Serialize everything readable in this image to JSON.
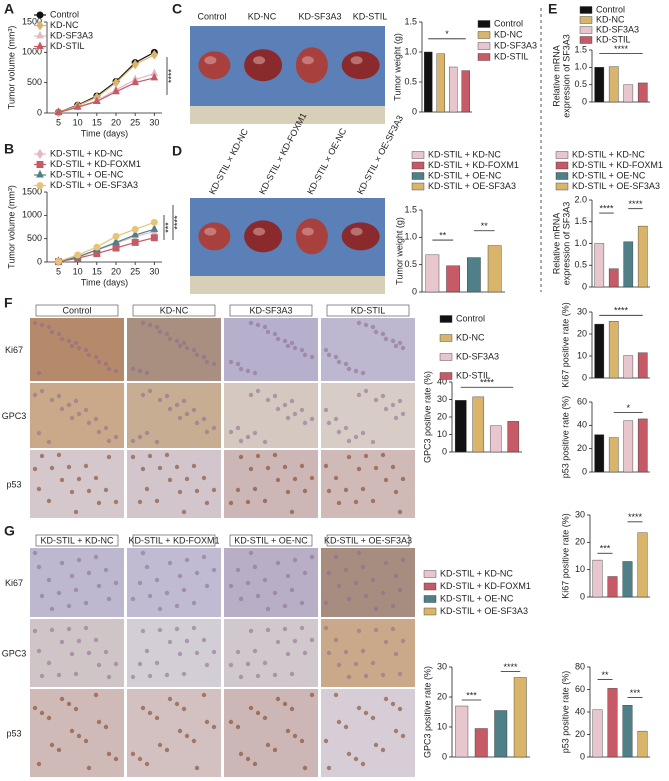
{
  "panel_labels": [
    "A",
    "B",
    "C",
    "D",
    "E",
    "F",
    "G"
  ],
  "tumor_photo_c": {
    "labels": [
      "Control",
      "KD-NC",
      "KD-SF3A3",
      "KD-STIL"
    ]
  },
  "tumor_photo_d": {
    "labels": [
      "KD-STIL × KD-NC",
      "KD-STIL × KD-FOXM1",
      "KD-STIL × OE-NC",
      "KD-STIL × OE-SF3A3"
    ]
  },
  "ihc_f": {
    "columns": [
      "Control",
      "KD-NC",
      "KD-SF3A3",
      "KD-STIL"
    ],
    "rows": [
      "Ki67",
      "GPC3",
      "p53"
    ]
  },
  "ihc_g": {
    "columns": [
      "KD-STIL + KD-NC",
      "KD-STIL + KD-FOXM1",
      "KD-STIL + OE-NC",
      "KD-STIL + OE-SF3A3"
    ],
    "rows": [
      "Ki67",
      "GPC3",
      "p53"
    ]
  },
  "chart_data": [
    {
      "type": "line",
      "xlabel": "Time (days)",
      "ylabel": "Tumor volume (mm³)",
      "x": [
        5,
        10,
        15,
        20,
        25,
        30
      ],
      "xlim": [
        2,
        32
      ],
      "xticks": [
        5,
        10,
        15,
        20,
        25,
        30
      ],
      "ylim": [
        0,
        1500
      ],
      "yticks": [
        0,
        500,
        1000,
        1500
      ],
      "series": [
        {
          "name": "Control",
          "color": "#111111",
          "marker": "circle",
          "values": [
            10,
            130,
            280,
            520,
            830,
            1000
          ]
        },
        {
          "name": "KD-NC",
          "color": "#d9b56b",
          "marker": "diamond",
          "values": [
            10,
            120,
            260,
            500,
            800,
            960
          ]
        },
        {
          "name": "KD-SF3A3",
          "color": "#e3b9c3",
          "marker": "triangle",
          "values": [
            8,
            100,
            200,
            380,
            550,
            650
          ]
        },
        {
          "name": "KD-STIL",
          "color": "#c65a67",
          "marker": "triangle",
          "values": [
            8,
            95,
            190,
            350,
            500,
            580
          ]
        }
      ],
      "annotations": [
        "****"
      ]
    },
    {
      "type": "line",
      "xlabel": "Time (days)",
      "ylabel": "Tumor volume (mm³)",
      "x": [
        5,
        10,
        15,
        20,
        25,
        30
      ],
      "xlim": [
        2,
        32
      ],
      "xticks": [
        5,
        10,
        15,
        20,
        25,
        30
      ],
      "ylim": [
        0,
        1500
      ],
      "yticks": [
        0,
        500,
        1000,
        1500
      ],
      "series": [
        {
          "name": "KD-STIL + KD-NC",
          "color": "#e3b9c3",
          "marker": "diamond",
          "values": [
            10,
            100,
            250,
            400,
            550,
            650
          ]
        },
        {
          "name": "KD-STIL + KD-FOXM1",
          "color": "#c65a67",
          "marker": "square",
          "values": [
            8,
            80,
            180,
            300,
            420,
            520
          ]
        },
        {
          "name": "KD-STIL + OE-NC",
          "color": "#4f8088",
          "marker": "triangle",
          "values": [
            10,
            110,
            260,
            420,
            580,
            700
          ]
        },
        {
          "name": "KD-STIL + OE-SF3A3",
          "color": "#e8c47a",
          "marker": "circle",
          "values": [
            12,
            150,
            320,
            550,
            700,
            850
          ]
        }
      ],
      "annotations": [
        "***",
        "****"
      ]
    },
    {
      "type": "bar",
      "ylabel": "Tumor weight (g)",
      "categories": [
        "Control",
        "KD-NC",
        "KD-SF3A3",
        "KD-STIL"
      ],
      "colors": [
        "#111111",
        "#d9b56b",
        "#e8c6cd",
        "#c65a67"
      ],
      "values": [
        1.0,
        0.97,
        0.75,
        0.69
      ],
      "ylim": [
        0,
        1.5
      ],
      "yticks": [
        0,
        0.5,
        {
          "value": 1,
          "label": "1.0"
        },
        1.5
      ],
      "legend": true,
      "annotations": [
        "*"
      ]
    },
    {
      "type": "bar",
      "ylabel": [
        "Relative mRNA",
        "expression of SF3A3"
      ],
      "categories": [
        "Control",
        "KD-NC",
        "KD-SF3A3",
        "KD-STIL"
      ],
      "colors": [
        "#111111",
        "#d9b56b",
        "#e8c6cd",
        "#c65a67"
      ],
      "values": [
        1.0,
        1.02,
        0.5,
        0.55
      ],
      "ylim": [
        0,
        1.5
      ],
      "yticks": [
        0,
        0.5,
        {
          "value": 1,
          "label": "1.0"
        },
        1.5
      ],
      "legend": true,
      "annotations": [
        "****"
      ]
    },
    {
      "type": "bar",
      "ylabel": [
        "Relative mRNA",
        "expression of SF3A3"
      ],
      "categories": [
        "KD-STIL + KD-NC",
        "KD-STIL + KD-FOXM1",
        "KD-STIL + OE-NC",
        "KD-STIL + OE-SF3A3"
      ],
      "colors": [
        "#e8c6cd",
        "#c65a67",
        "#4f8088",
        "#d9b56b"
      ],
      "values": [
        1.0,
        0.42,
        1.04,
        1.4
      ],
      "ylim": [
        0,
        2
      ],
      "yticks": [
        0,
        0.5,
        {
          "value": 1,
          "label": "1.0"
        },
        1.5,
        {
          "value": 2,
          "label": "2.0"
        }
      ],
      "legend": true,
      "annotations": [
        "****",
        "****"
      ]
    },
    {
      "type": "bar",
      "ylabel": "Tumor weight (g)",
      "categories": [
        "KD-STIL + KD-NC",
        "KD-STIL + KD-FOXM1",
        "KD-STIL + OE-NC",
        "KD-STIL + OE-SF3A3"
      ],
      "colors": [
        "#e8c6cd",
        "#c65a67",
        "#4f8088",
        "#d9b56b"
      ],
      "values": [
        0.68,
        0.48,
        0.63,
        0.85
      ],
      "ylim": [
        0,
        1.5
      ],
      "yticks": [
        0,
        0.5,
        {
          "value": 1,
          "label": "1.0"
        },
        1.5
      ],
      "legend": true,
      "annotations": [
        "**",
        "**"
      ]
    },
    {
      "type": "bar",
      "ylabel": "Ki67 positive rate (%)",
      "categories": [
        null,
        null,
        null,
        null
      ],
      "colors": [
        "#111111",
        "#d9b56b",
        "#e8c6cd",
        "#c65a67"
      ],
      "values": [
        24.5,
        25.8,
        10.2,
        11.5
      ],
      "ylim": [
        0,
        30
      ],
      "yticks": [
        0,
        10,
        20,
        30
      ],
      "legend": false,
      "annotations": [
        "****"
      ]
    },
    {
      "type": "bar",
      "ylabel": "GPC3 positive rate (%)",
      "categories": [
        "Control",
        "KD-NC",
        "KD-SF3A3",
        "KD-STIL"
      ],
      "colors": [
        "#111111",
        "#d9b56b",
        "#e8c6cd",
        "#c65a67"
      ],
      "values": [
        29.5,
        31.5,
        15,
        17.5
      ],
      "ylim": [
        0,
        40
      ],
      "yticks": [
        0,
        10,
        20,
        30,
        40
      ],
      "legend": true,
      "annotations": [
        "****"
      ]
    },
    {
      "type": "bar",
      "ylabel": "p53 positive rate (%)",
      "categories": [
        null,
        null,
        null,
        null
      ],
      "colors": [
        "#111111",
        "#d9b56b",
        "#e8c6cd",
        "#c65a67"
      ],
      "values": [
        32,
        29.5,
        44,
        45.5
      ],
      "ylim": [
        0,
        60
      ],
      "yticks": [
        0,
        20,
        40,
        60
      ],
      "legend": false,
      "annotations": [
        "*"
      ]
    },
    {
      "type": "bar",
      "ylabel": "Ki67 positive rate (%)",
      "categories": [
        null,
        null,
        null,
        null
      ],
      "colors": [
        "#e8c6cd",
        "#c65a67",
        "#4f8088",
        "#d9b56b"
      ],
      "values": [
        13.5,
        7.5,
        13,
        23.5
      ],
      "ylim": [
        0,
        30
      ],
      "yticks": [
        0,
        10,
        20,
        30
      ],
      "legend": false,
      "annotations": [
        "***",
        "****"
      ]
    },
    {
      "type": "bar",
      "ylabel": "GPC3 positive rate (%)",
      "categories": [
        "KD-STIL + KD-NC",
        "KD-STIL + KD-FOXM1",
        "KD-STIL + OE-NC",
        "KD-STIL + OE-SF3A3"
      ],
      "colors": [
        "#e8c6cd",
        "#c65a67",
        "#4f8088",
        "#d9b56b"
      ],
      "values": [
        17,
        9.5,
        15.5,
        26.5
      ],
      "ylim": [
        0,
        30
      ],
      "yticks": [
        0,
        10,
        20,
        30
      ],
      "legend": true,
      "annotations": [
        "***",
        "****"
      ]
    },
    {
      "type": "bar",
      "ylabel": "p53 positive rate (%)",
      "categories": [
        null,
        null,
        null,
        null
      ],
      "colors": [
        "#e8c6cd",
        "#c65a67",
        "#4f8088",
        "#d9b56b"
      ],
      "values": [
        42,
        61,
        46,
        23
      ],
      "ylim": [
        0,
        80
      ],
      "yticks": [
        0,
        20,
        40,
        60,
        80
      ],
      "legend": false,
      "annotations": [
        "**",
        "***"
      ]
    }
  ]
}
